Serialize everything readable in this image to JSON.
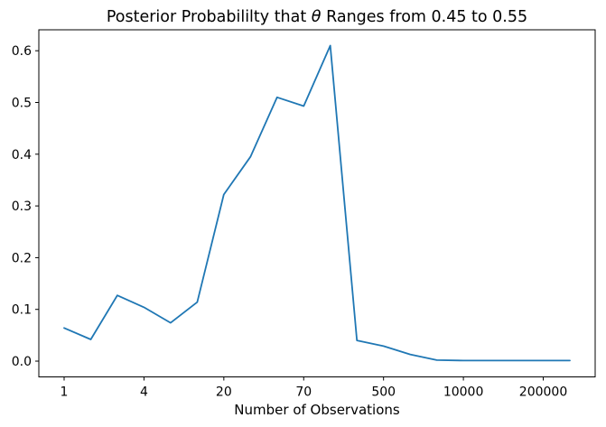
{
  "figure": {
    "title_pre": "Posterior Probabililty that ",
    "title_theta": "θ",
    "title_post": " Ranges from 0.45 to 0.55",
    "xlabel": "Number of Observations"
  },
  "chart_data": {
    "type": "line",
    "title": "Posterior Probabililty that θ Ranges from 0.45 to 0.55",
    "xlabel": "Number of Observations",
    "ylabel": "",
    "grid": false,
    "legend": false,
    "line_color": "#1f77b4",
    "n_points": 20,
    "x_index": [
      0,
      1,
      2,
      3,
      4,
      5,
      6,
      7,
      8,
      9,
      10,
      11,
      12,
      13,
      14,
      15,
      16,
      17,
      18,
      19
    ],
    "values": [
      0.064,
      0.042,
      0.127,
      0.104,
      0.074,
      0.114,
      0.322,
      0.395,
      0.51,
      0.493,
      0.61,
      0.04,
      0.029,
      0.013,
      0.002,
      0.001,
      0.001,
      0.001,
      0.001,
      0.001
    ],
    "x_tick_indices": [
      0,
      3,
      6,
      9,
      12,
      15,
      18
    ],
    "x_tick_labels": [
      "1",
      "4",
      "20",
      "70",
      "500",
      "10000",
      "200000"
    ],
    "y_ticks": [
      "0.0",
      "0.1",
      "0.2",
      "0.3",
      "0.4",
      "0.5",
      "0.6"
    ],
    "xlim": [
      -0.95,
      19.95
    ],
    "ylim": [
      -0.0305,
      0.6405
    ]
  },
  "colors": {
    "line": "#1f77b4",
    "text": "#000000",
    "spine": "#000000",
    "background": "#ffffff"
  }
}
